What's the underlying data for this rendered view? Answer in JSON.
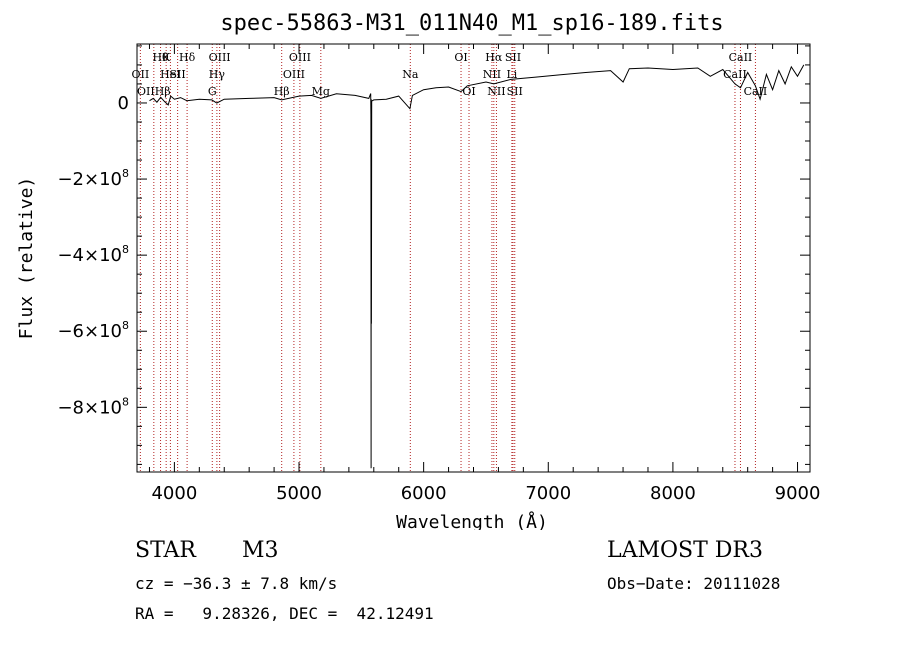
{
  "chart_data": {
    "type": "line",
    "title": "spec-55863-M31_011N40_M1_sp16-189.fits",
    "xlabel": "Wavelength (Å)",
    "ylabel": "Flux (relative)",
    "xlim": [
      3700,
      9100
    ],
    "ylim": [
      -970000000.0,
      155000000.0
    ],
    "x_ticks": [
      {
        "value": 4000,
        "label": "4000"
      },
      {
        "value": 5000,
        "label": "5000"
      },
      {
        "value": 6000,
        "label": "6000"
      },
      {
        "value": 7000,
        "label": "7000"
      },
      {
        "value": 8000,
        "label": "8000"
      },
      {
        "value": 9000,
        "label": "9000"
      }
    ],
    "y_ticks": [
      {
        "value": 0,
        "label": "0",
        "exp": ""
      },
      {
        "value": -200000000.0,
        "label": "−2×10",
        "exp": "8"
      },
      {
        "value": -400000000.0,
        "label": "−4×10",
        "exp": "8"
      },
      {
        "value": -600000000.0,
        "label": "−6×10",
        "exp": "8"
      },
      {
        "value": -800000000.0,
        "label": "−8×10",
        "exp": "8"
      }
    ],
    "spectrum": [
      [
        3800,
        6000000.0
      ],
      [
        3830,
        12000000.0
      ],
      [
        3860,
        2000000.0
      ],
      [
        3890,
        15000000.0
      ],
      [
        3920,
        4000000.0
      ],
      [
        3950,
        -5000000.0
      ],
      [
        3970,
        18000000.0
      ],
      [
        4000,
        10000000.0
      ],
      [
        4050,
        14000000.0
      ],
      [
        4100,
        6000000.0
      ],
      [
        4200,
        10000000.0
      ],
      [
        4300,
        8000000.0
      ],
      [
        4340,
        0.0
      ],
      [
        4400,
        10000000.0
      ],
      [
        4600,
        12000000.0
      ],
      [
        4800,
        14000000.0
      ],
      [
        4861,
        8000000.0
      ],
      [
        5000,
        18000000.0
      ],
      [
        5100,
        20000000.0
      ],
      [
        5175,
        12000000.0
      ],
      [
        5300,
        24000000.0
      ],
      [
        5450,
        20000000.0
      ],
      [
        5560,
        12000000.0
      ],
      [
        5575,
        25000000.0
      ],
      [
        5577,
        -30000000.0
      ],
      [
        5578,
        -960000000.0
      ],
      [
        5579,
        10000000.0
      ],
      [
        5581,
        -580000000.0
      ],
      [
        5583,
        5000000.0
      ],
      [
        5600,
        8000000.0
      ],
      [
        5700,
        10000000.0
      ],
      [
        5800,
        18000000.0
      ],
      [
        5890,
        -15000000.0
      ],
      [
        5910,
        20000000.0
      ],
      [
        6000,
        35000000.0
      ],
      [
        6100,
        40000000.0
      ],
      [
        6200,
        42000000.0
      ],
      [
        6300,
        30000000.0
      ],
      [
        6350,
        45000000.0
      ],
      [
        6500,
        55000000.0
      ],
      [
        6563,
        50000000.0
      ],
      [
        6700,
        62000000.0
      ],
      [
        6900,
        68000000.0
      ],
      [
        7100,
        74000000.0
      ],
      [
        7300,
        80000000.0
      ],
      [
        7500,
        85000000.0
      ],
      [
        7600,
        55000000.0
      ],
      [
        7650,
        90000000.0
      ],
      [
        7800,
        92000000.0
      ],
      [
        8000,
        88000000.0
      ],
      [
        8200,
        92000000.0
      ],
      [
        8300,
        70000000.0
      ],
      [
        8400,
        88000000.0
      ],
      [
        8498,
        50000000.0
      ],
      [
        8542,
        40000000.0
      ],
      [
        8600,
        80000000.0
      ],
      [
        8662,
        45000000.0
      ],
      [
        8700,
        10000000.0
      ],
      [
        8750,
        75000000.0
      ],
      [
        8800,
        35000000.0
      ],
      [
        8850,
        85000000.0
      ],
      [
        8900,
        50000000.0
      ],
      [
        8950,
        95000000.0
      ],
      [
        9000,
        70000000.0
      ],
      [
        9050,
        100000000.0
      ]
    ],
    "lines": [
      {
        "wl": 3727,
        "label": "OII",
        "row": 2
      },
      {
        "wl": 3835,
        "label": "OIIHβ",
        "row": 3
      },
      {
        "wl": 3889,
        "label": "Hθ",
        "row": 1
      },
      {
        "wl": 3934,
        "label": "K",
        "row": 1
      },
      {
        "wl": 3968,
        "label": "HeI",
        "row": 2
      },
      {
        "wl": 4026,
        "label": "SII",
        "row": 2
      },
      {
        "wl": 4102,
        "label": "Hδ",
        "row": 1
      },
      {
        "wl": 4304,
        "label": "G",
        "row": 3
      },
      {
        "wl": 4341,
        "label": "Hγ",
        "row": 2
      },
      {
        "wl": 4363,
        "label": "OIII",
        "row": 1
      },
      {
        "wl": 4861,
        "label": "Hβ",
        "row": 3
      },
      {
        "wl": 4959,
        "label": "OIII",
        "row": 2
      },
      {
        "wl": 5007,
        "label": "OIII",
        "row": 1
      },
      {
        "wl": 5175,
        "label": "Mg",
        "row": 3
      },
      {
        "wl": 5893,
        "label": "Na",
        "row": 2
      },
      {
        "wl": 6300,
        "label": "OI",
        "row": 1
      },
      {
        "wl": 6364,
        "label": "OI",
        "row": 3
      },
      {
        "wl": 6548,
        "label": "NII",
        "row": 2
      },
      {
        "wl": 6563,
        "label": "Hα",
        "row": 1
      },
      {
        "wl": 6584,
        "label": "NII",
        "row": 3
      },
      {
        "wl": 6708,
        "label": "Li",
        "row": 2
      },
      {
        "wl": 6717,
        "label": "SII",
        "row": 1
      },
      {
        "wl": 6731,
        "label": "SII",
        "row": 3
      },
      {
        "wl": 8498,
        "label": "CaII",
        "row": 2
      },
      {
        "wl": 8542,
        "label": "CaII",
        "row": 1
      },
      {
        "wl": 8662,
        "label": "CaII",
        "row": 3
      }
    ]
  },
  "info": {
    "class": "STAR",
    "subclass": "M3",
    "survey": "LAMOST DR3",
    "cz": "cz = −36.3 ± 7.8 km/s",
    "obs_date": "Obs−Date: 20111028",
    "coords": "RA =   9.28326, DEC =  42.12491"
  }
}
